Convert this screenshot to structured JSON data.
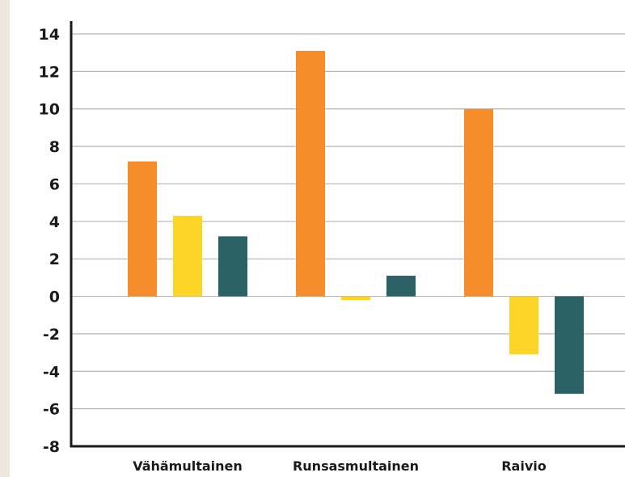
{
  "chart_data": {
    "type": "bar",
    "title": "",
    "xlabel": "",
    "ylabel": "",
    "categories": [
      "Vähämultainen",
      "Runsasmultainen",
      "Raivio"
    ],
    "series": [
      {
        "color": "#f58d2c",
        "values": [
          7.2,
          13.1,
          10.0
        ]
      },
      {
        "color": "#fdd528",
        "values": [
          4.3,
          -0.2,
          -3.1
        ]
      },
      {
        "color": "#2a6066",
        "values": [
          3.2,
          1.1,
          -5.2
        ]
      }
    ],
    "ylim": [
      -8,
      14
    ],
    "yticks": [
      "14",
      "12",
      "10",
      "8",
      "6",
      "4",
      "2",
      "0",
      "-2",
      "-4",
      "-6",
      "-8"
    ],
    "grid": true,
    "colors": {
      "gridline": "#b5b5b5",
      "axis": "#1a1a1a",
      "background": "#ffffff",
      "outer_background": "#ede7de"
    }
  }
}
